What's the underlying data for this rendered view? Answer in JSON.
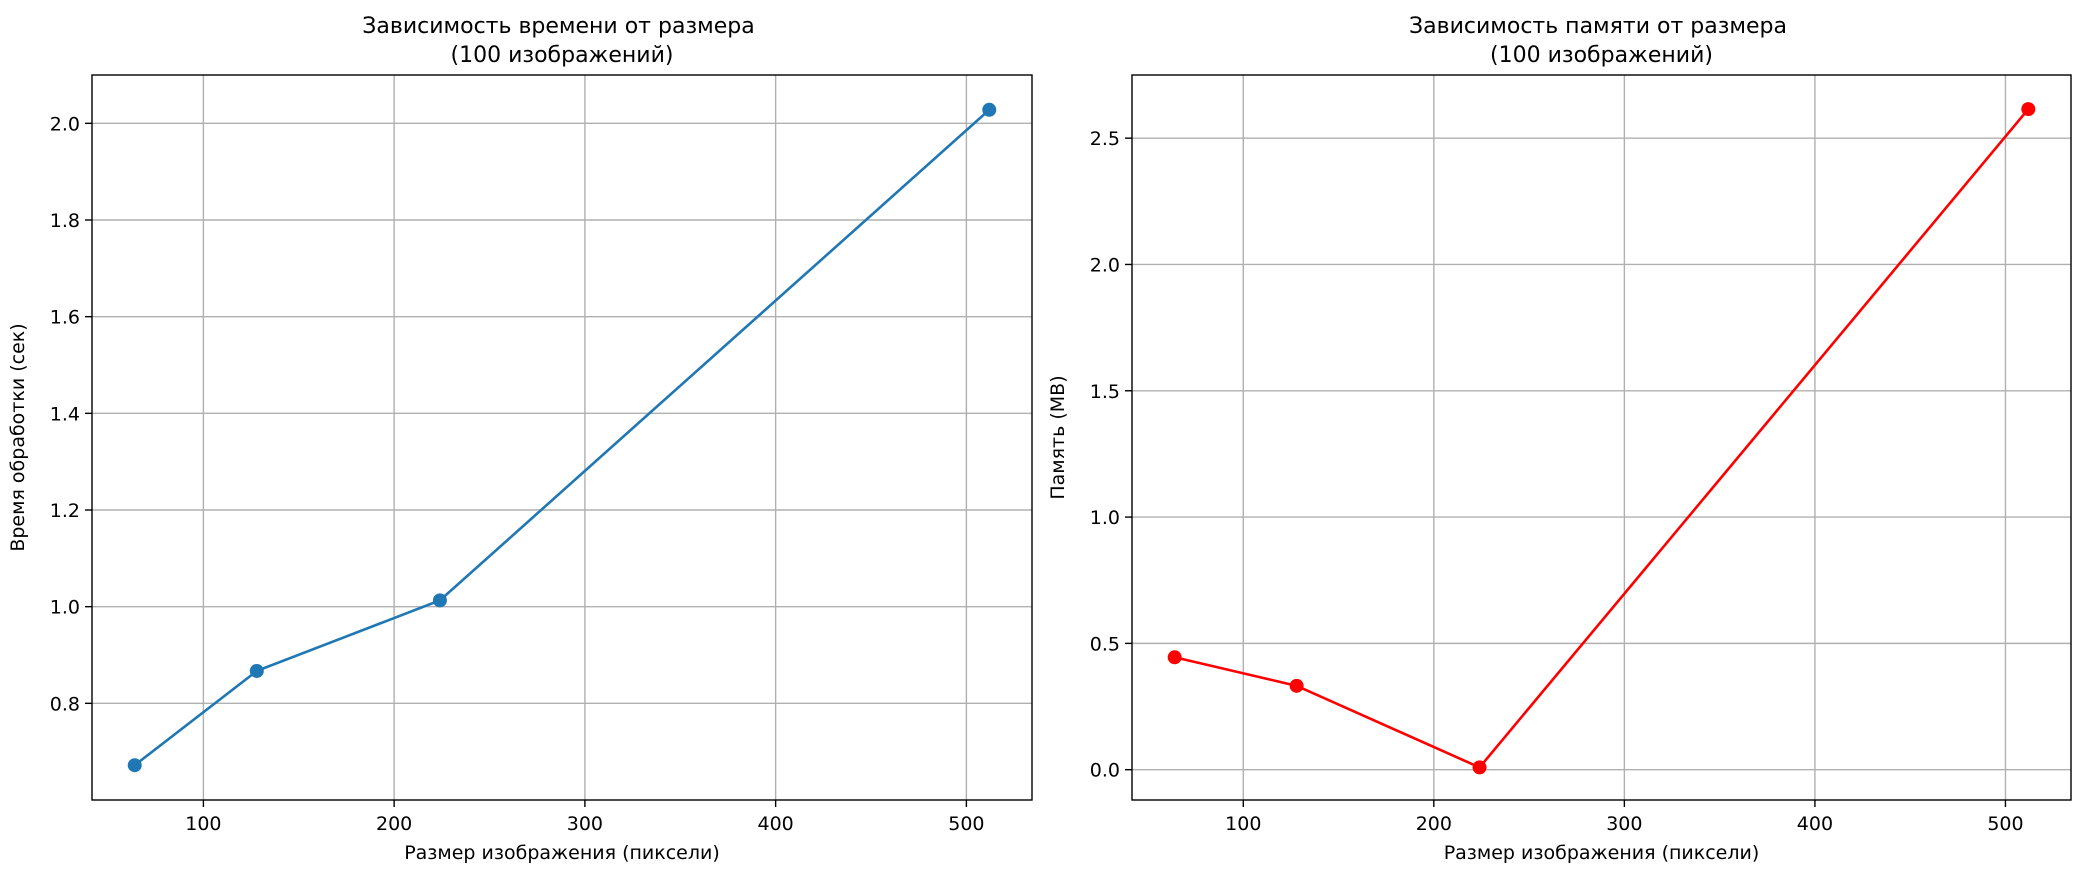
{
  "chart_data": [
    {
      "type": "line",
      "title": "Зависимость времени от размера\n(100 изображений)",
      "xlabel": "Размер изображения (пиксели)",
      "ylabel": "Время обработки (сек)",
      "x": [
        64,
        128,
        224,
        512
      ],
      "series": [
        {
          "values": [
            0.672,
            0.867,
            1.013,
            2.028
          ],
          "color": "#1f77b4",
          "marker": "circle"
        }
      ],
      "xlim": [
        41.6,
        534.4
      ],
      "ylim": [
        0.6,
        2.1
      ],
      "xticks": [
        100,
        200,
        300,
        400,
        500
      ],
      "xtick_labels": [
        "100",
        "200",
        "300",
        "400",
        "500"
      ],
      "yticks": [
        0.8,
        1.0,
        1.2,
        1.4,
        1.6,
        1.8,
        2.0
      ],
      "ytick_labels": [
        "0.8",
        "1.0",
        "1.2",
        "1.4",
        "1.6",
        "1.8",
        "2.0"
      ],
      "grid": true
    },
    {
      "type": "line",
      "title": "Зависимость памяти от размера\n(100 изображений)",
      "xlabel": "Размер изображения (пиксели)",
      "ylabel": "Память (MB)",
      "x": [
        64,
        128,
        224,
        512
      ],
      "series": [
        {
          "values": [
            0.445,
            0.332,
            0.009,
            2.615
          ],
          "color": "#ff0000",
          "marker": "circle"
        }
      ],
      "xlim": [
        41.6,
        534.4
      ],
      "ylim": [
        -0.12,
        2.75
      ],
      "xticks": [
        100,
        200,
        300,
        400,
        500
      ],
      "xtick_labels": [
        "100",
        "200",
        "300",
        "400",
        "500"
      ],
      "yticks": [
        0.0,
        0.5,
        1.0,
        1.5,
        2.0,
        2.5
      ],
      "ytick_labels": [
        "0.0",
        "0.5",
        "1.0",
        "1.5",
        "2.0",
        "2.5"
      ],
      "grid": true
    }
  ]
}
